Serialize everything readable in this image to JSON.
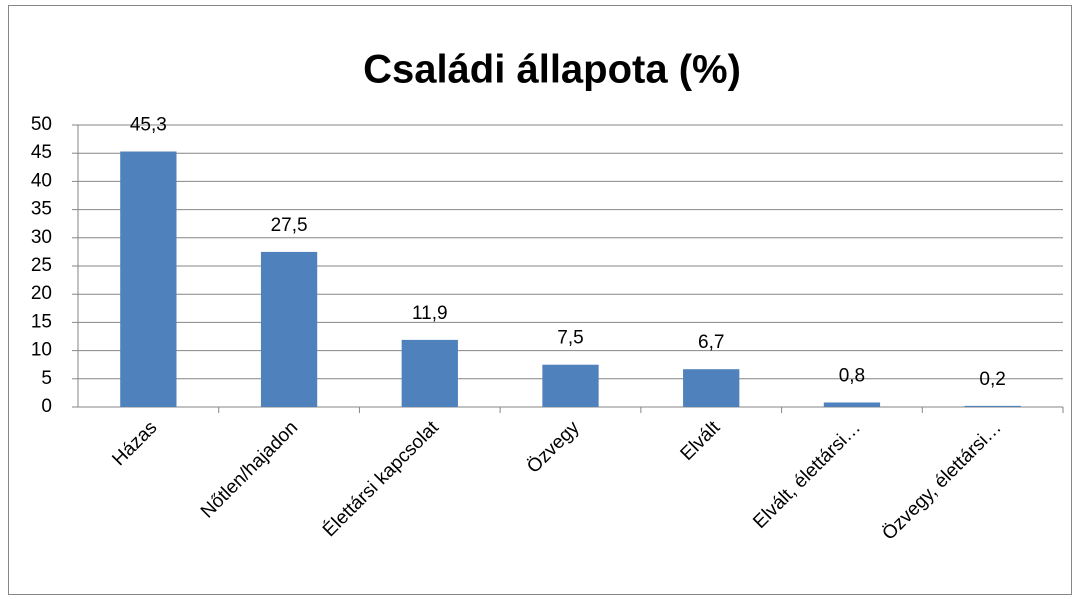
{
  "chart_data": {
    "type": "bar",
    "title": "Családi állapota (%)",
    "categories": [
      "Házas",
      "Nőtlen/hajadon",
      "Élettársi kapcsolat",
      "Özvegy",
      "Elvált",
      "Elvált, élettársi…",
      "Özvegy, élettársi…"
    ],
    "values": [
      45.3,
      27.5,
      11.9,
      7.5,
      6.7,
      0.8,
      0.2
    ],
    "value_labels": [
      "45,3",
      "27,5",
      "11,9",
      "7,5",
      "6,7",
      "0,8",
      "0,2"
    ],
    "color": "#4f81bd",
    "ylim": [
      0,
      50
    ],
    "yticks": [
      0,
      5,
      10,
      15,
      20,
      25,
      30,
      35,
      40,
      45,
      50
    ],
    "grid": true
  }
}
